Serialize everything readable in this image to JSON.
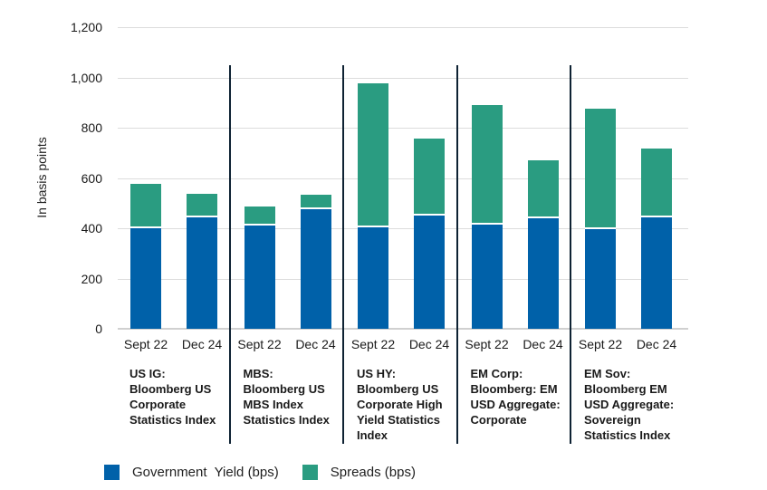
{
  "chart_data": {
    "type": "bar",
    "stacked": true,
    "title": "",
    "ylabel": "In basis points",
    "xlabel": "",
    "ylim": [
      0,
      1200
    ],
    "yticks": [
      0,
      200,
      400,
      600,
      800,
      1000,
      1200
    ],
    "ytick_labels": [
      "0",
      "200",
      "400",
      "600",
      "800",
      "1,000",
      "1,200"
    ],
    "grid": true,
    "legend_position": "bottom",
    "categories": [
      "Sept 22",
      "Dec 24"
    ],
    "series": [
      {
        "name": "Government  Yield (bps)",
        "key": "government_yield",
        "color": "#0061A9"
      },
      {
        "name": "Spreads (bps)",
        "key": "spreads",
        "color": "#2A9C81"
      }
    ],
    "groups": [
      {
        "id": "us-ig",
        "label_lines": [
          "US IG:",
          "Bloomberg US",
          "Corporate",
          "Statistics Index"
        ],
        "values": [
          {
            "category": "Sept 22",
            "government_yield": 400,
            "spreads": 170,
            "total": 570
          },
          {
            "category": "Dec 24",
            "government_yield": 445,
            "spreads": 85,
            "total": 530
          }
        ]
      },
      {
        "id": "mbs",
        "label_lines": [
          "MBS:",
          "Bloomberg US",
          "MBS Index",
          "Statistics Index"
        ],
        "values": [
          {
            "category": "Sept 22",
            "government_yield": 410,
            "spreads": 70,
            "total": 480
          },
          {
            "category": "Dec 24",
            "government_yield": 475,
            "spreads": 50,
            "total": 525
          }
        ]
      },
      {
        "id": "us-hy",
        "label_lines": [
          "US HY:",
          "Bloomberg US",
          "Corporate High",
          "Yield Statistics",
          "Index"
        ],
        "values": [
          {
            "category": "Sept 22",
            "government_yield": 405,
            "spreads": 565,
            "total": 970
          },
          {
            "category": "Dec 24",
            "government_yield": 450,
            "spreads": 300,
            "total": 750
          }
        ]
      },
      {
        "id": "em-corp",
        "label_lines": [
          "EM Corp:",
          "Bloomberg: EM",
          "USD Aggregate:",
          "Corporate"
        ],
        "values": [
          {
            "category": "Sept 22",
            "government_yield": 415,
            "spreads": 468,
            "total": 883
          },
          {
            "category": "Dec 24",
            "government_yield": 440,
            "spreads": 222,
            "total": 662
          }
        ]
      },
      {
        "id": "em-sov",
        "label_lines": [
          "EM Sov:",
          "Bloomberg EM",
          "USD Aggregate:",
          "Sovereign",
          "Statistics Index"
        ],
        "values": [
          {
            "category": "Sept 22",
            "government_yield": 398,
            "spreads": 472,
            "total": 870
          },
          {
            "category": "Dec 24",
            "government_yield": 443,
            "spreads": 267,
            "total": 710
          }
        ]
      }
    ],
    "colors": {
      "grid": "#DCDCDC",
      "zero_line": "#D0D0D0",
      "divider": "#0E2233",
      "text": "#1F1F1F",
      "background": "#FFFFFF",
      "segment_separator": "#FFFFFF"
    }
  }
}
